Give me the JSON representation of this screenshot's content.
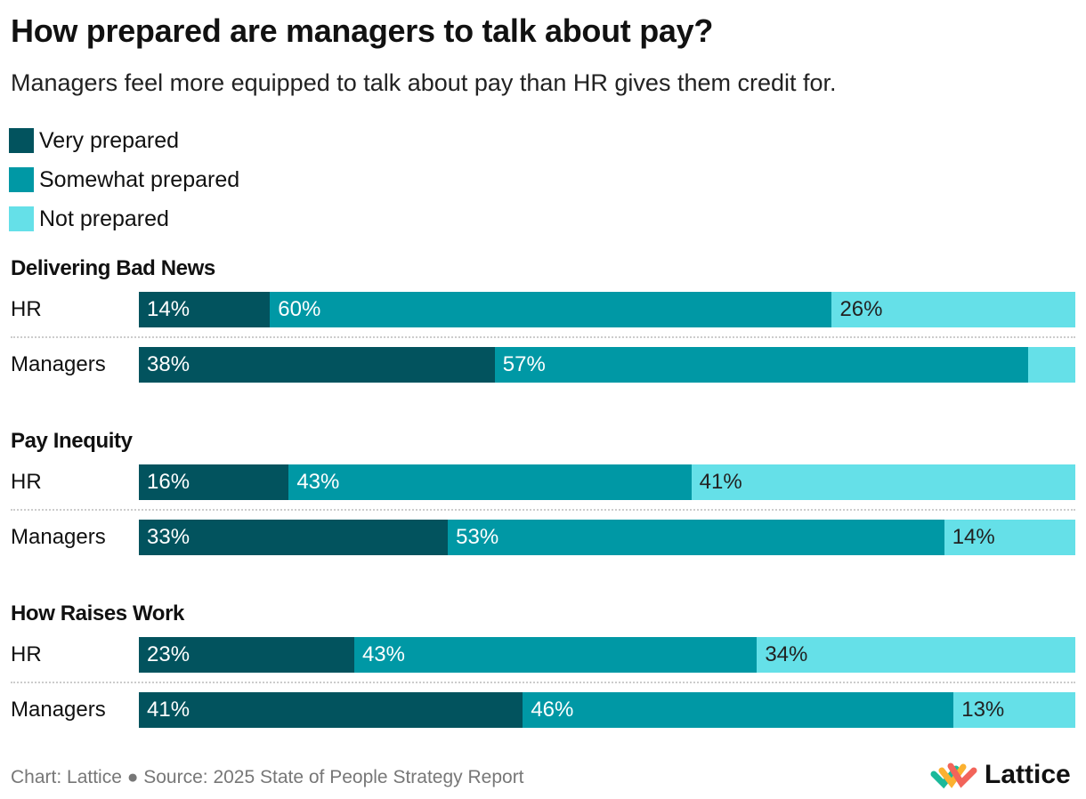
{
  "chart_data": {
    "type": "bar",
    "orientation": "horizontal",
    "stacked": true,
    "normalized": true,
    "title": "How prepared are managers to talk about pay?",
    "subtitle": "Managers feel more equipped to talk about pay than HR gives them credit for.",
    "legend_position": "top-left",
    "series": [
      {
        "name": "Very prepared",
        "color": "#02535e"
      },
      {
        "name": "Somewhat prepared",
        "color": "#0098a5"
      },
      {
        "name": "Not prepared",
        "color": "#65e0e8"
      }
    ],
    "groups": [
      {
        "title": "Delivering Bad News",
        "rows": [
          {
            "label": "HR",
            "values": [
              14,
              60,
              26
            ]
          },
          {
            "label": "Managers",
            "values": [
              38,
              57,
              5
            ]
          }
        ]
      },
      {
        "title": "Pay Inequity",
        "rows": [
          {
            "label": "HR",
            "values": [
              16,
              43,
              41
            ]
          },
          {
            "label": "Managers",
            "values": [
              33,
              53,
              14
            ]
          }
        ]
      },
      {
        "title": "How Raises Work",
        "rows": [
          {
            "label": "HR",
            "values": [
              23,
              43,
              34
            ]
          },
          {
            "label": "Managers",
            "values": [
              41,
              46,
              13
            ]
          }
        ]
      }
    ],
    "grid": false
  },
  "footer": "Chart: Lattice ● Source: 2025 State of People Strategy Report",
  "logo": {
    "text": "Lattice"
  }
}
